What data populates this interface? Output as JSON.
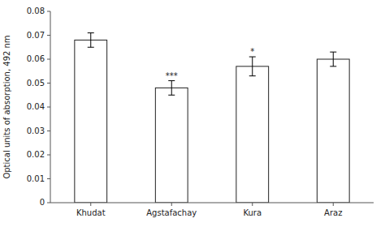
{
  "chart_data": {
    "type": "bar",
    "categories": [
      "Khudat",
      "Agstafachay",
      "Kura",
      "Araz"
    ],
    "values": [
      0.068,
      0.048,
      0.057,
      0.06
    ],
    "errors": [
      0.003,
      0.003,
      0.004,
      0.003
    ],
    "annotations": [
      null,
      "***",
      "*",
      null
    ],
    "ylabel": "Optical units of absorption, 492 nm",
    "color": "#ffffff",
    "ylim": [
      0,
      0.08
    ],
    "yticks": [
      0,
      0.01,
      0.02,
      0.03,
      0.04,
      0.05,
      0.06,
      0.07,
      0.08
    ]
  }
}
